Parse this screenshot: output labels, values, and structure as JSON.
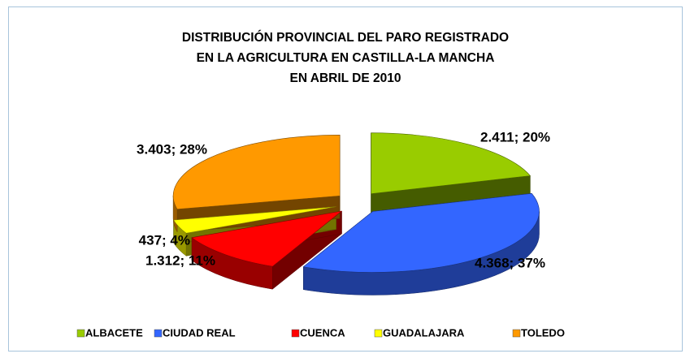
{
  "chart_data": {
    "type": "pie",
    "title": [
      "DISTRIBUCIÓN PROVINCIAL DEL PARO REGISTRADO",
      "EN LA AGRICULTURA EN CASTILLA-LA MANCHA",
      "EN ABRIL DE 2010"
    ],
    "categories": [
      "ALBACETE",
      "CIUDAD REAL",
      "CUENCA",
      "GUADALAJARA",
      "TOLEDO"
    ],
    "values": [
      2411,
      4368,
      1312,
      437,
      3403
    ],
    "value_labels": [
      "2.411; 20%",
      "4.368; 37%",
      "1.312; 11%",
      "437; 4%",
      "3.403; 28%"
    ],
    "colors": [
      "#99cc00",
      "#3366ff",
      "#ff0000",
      "#ffff00",
      "#ff9900"
    ],
    "legend": "bottom"
  }
}
